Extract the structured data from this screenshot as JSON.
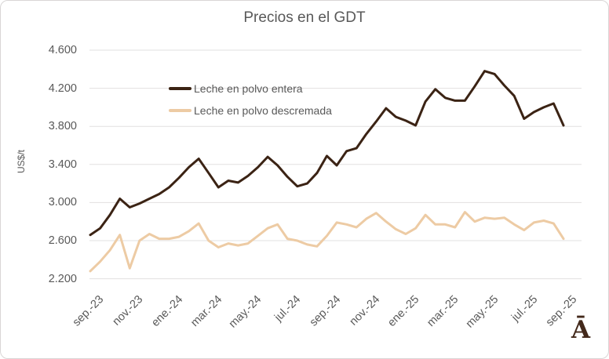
{
  "chart_data": {
    "type": "line",
    "title": "Precios en el GDT",
    "ylabel": "US$/t",
    "xlabel": "",
    "ylim": [
      2200,
      4600
    ],
    "grid": "horizontal",
    "legend_position": "inside-top-left",
    "gridline_color": "#e2e0e0",
    "text_color": "#595959",
    "y_tick_values": [
      4600,
      4200,
      3800,
      3400,
      3000,
      2600,
      2200
    ],
    "y_tick_labels": [
      "4.600",
      "4.200",
      "3.800",
      "3.400",
      "3.000",
      "2.600",
      "2.200"
    ],
    "x_tick_labels": [
      "sep.-23",
      "nov.-23",
      "ene.-24",
      "mar.-24",
      "may.-24",
      "jul.-24",
      "sep.-24",
      "nov.-24",
      "ene.-25",
      "mar.-25",
      "may.-25",
      "jul.-25",
      "sep.-25"
    ],
    "x_sampling": "two observations per month from sep.-23 to sep.-25",
    "series": [
      {
        "name": "Leche en polvo entera",
        "color": "#3b2314",
        "values": [
          2660,
          2730,
          2870,
          3040,
          2950,
          2990,
          3040,
          3090,
          3160,
          3260,
          3370,
          3460,
          3310,
          3160,
          3230,
          3210,
          3280,
          3370,
          3480,
          3390,
          3270,
          3170,
          3200,
          3310,
          3490,
          3390,
          3540,
          3570,
          3720,
          3850,
          3990,
          3900,
          3860,
          3810,
          4060,
          4190,
          4100,
          4070,
          4070,
          4220,
          4380,
          4350,
          4230,
          4120,
          3880,
          3950,
          4000,
          4040,
          3810
        ]
      },
      {
        "name": "Leche en polvo descremada",
        "color": "#edcba4",
        "values": [
          2280,
          2380,
          2500,
          2660,
          2310,
          2600,
          2670,
          2620,
          2620,
          2640,
          2700,
          2780,
          2600,
          2530,
          2570,
          2550,
          2570,
          2650,
          2730,
          2770,
          2620,
          2600,
          2560,
          2540,
          2650,
          2790,
          2770,
          2740,
          2830,
          2890,
          2800,
          2720,
          2670,
          2730,
          2870,
          2770,
          2770,
          2740,
          2900,
          2800,
          2840,
          2830,
          2840,
          2770,
          2710,
          2790,
          2810,
          2780,
          2620
        ]
      }
    ]
  },
  "branding": {
    "logo_text": "Ā"
  }
}
